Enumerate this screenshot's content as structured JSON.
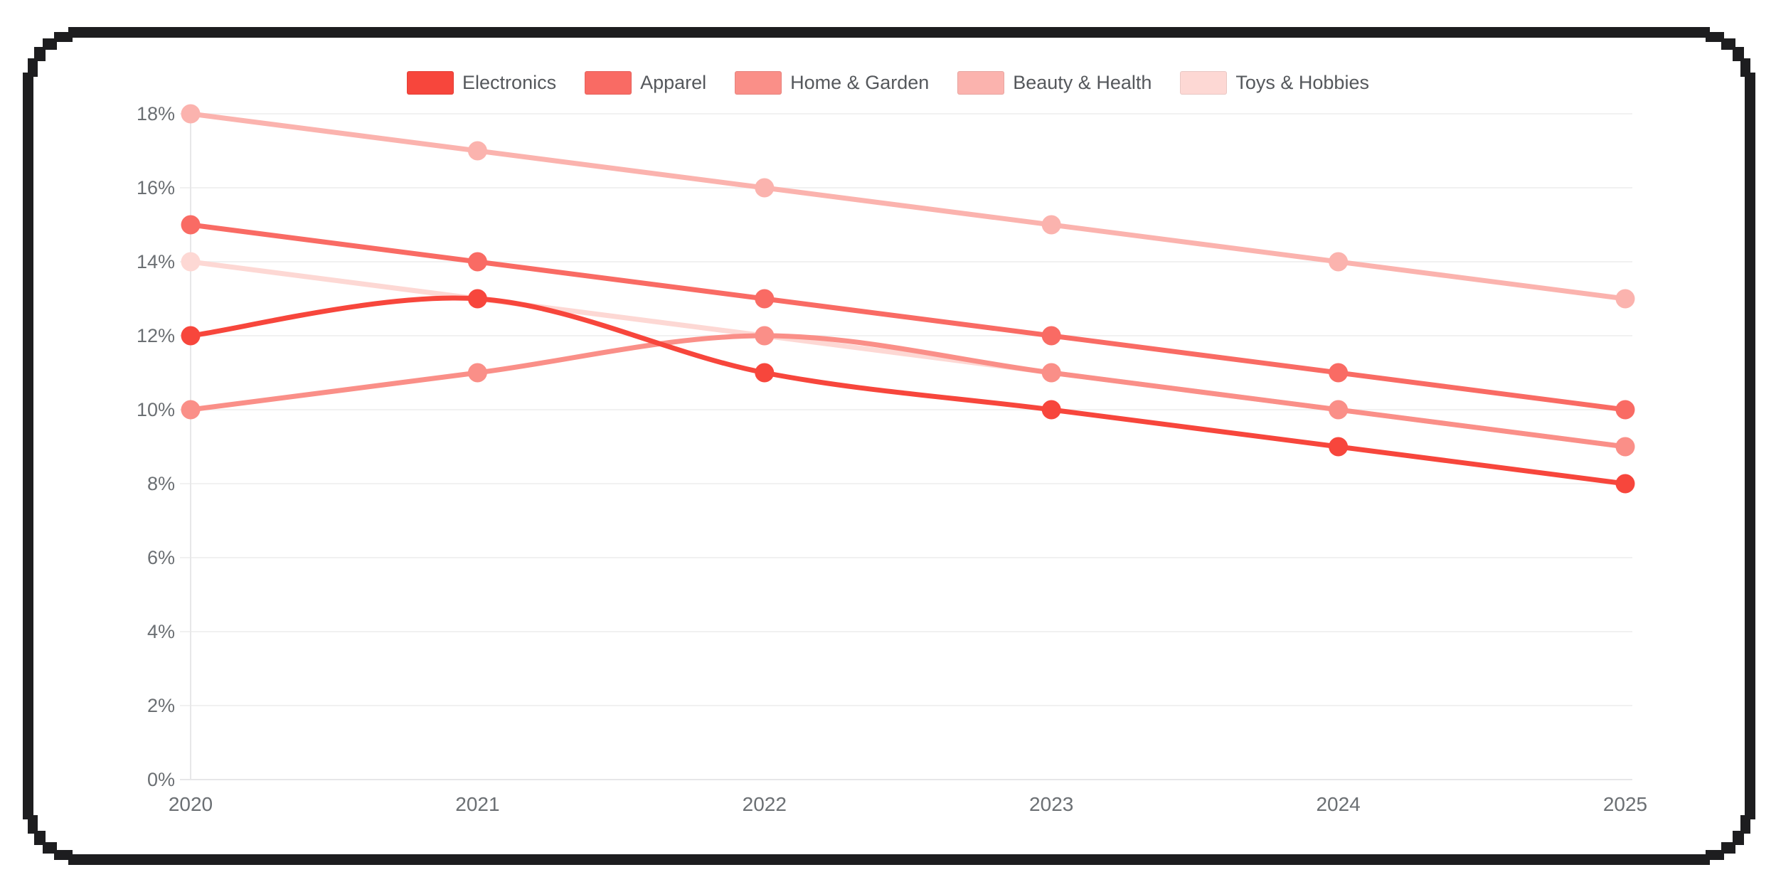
{
  "window": {
    "background": "#ffffff",
    "frame_color": "#1d1d1f"
  },
  "legend": {
    "items": [
      "Electronics",
      "Apparel",
      "Home & Garden",
      "Beauty & Health",
      "Toys & Hobbies"
    ]
  },
  "chart_data": {
    "type": "line",
    "title": "",
    "xlabel": "",
    "ylabel": "",
    "x": [
      "2020",
      "2021",
      "2022",
      "2023",
      "2024",
      "2025"
    ],
    "series": [
      {
        "name": "Electronics",
        "color": "#f7463c",
        "values": [
          12,
          13,
          11,
          10,
          9,
          8
        ]
      },
      {
        "name": "Apparel",
        "color": "#f96b64",
        "values": [
          15,
          14,
          13,
          12,
          11,
          10
        ]
      },
      {
        "name": "Home & Garden",
        "color": "#fa8f88",
        "values": [
          10,
          11,
          12,
          11,
          10,
          9
        ]
      },
      {
        "name": "Beauty & Health",
        "color": "#fbb3ae",
        "values": [
          18,
          17,
          16,
          15,
          14,
          13
        ]
      },
      {
        "name": "Toys & Hobbies",
        "color": "#fdd8d4",
        "values": [
          14,
          13,
          12,
          11,
          10,
          9
        ]
      }
    ],
    "y_ticks": [
      "0%",
      "2%",
      "4%",
      "6%",
      "8%",
      "10%",
      "12%",
      "14%",
      "16%",
      "18%"
    ],
    "ylim": [
      0,
      18
    ],
    "y_tick_step": 2,
    "unit": "%",
    "legend_position": "top",
    "grid": true,
    "line_style": "smooth",
    "point_markers": true
  },
  "axis_style": {
    "tick_text_color": "#6b6f73",
    "grid_color": "#f1f1f1",
    "axis_line_color": "#e7e7e8"
  }
}
